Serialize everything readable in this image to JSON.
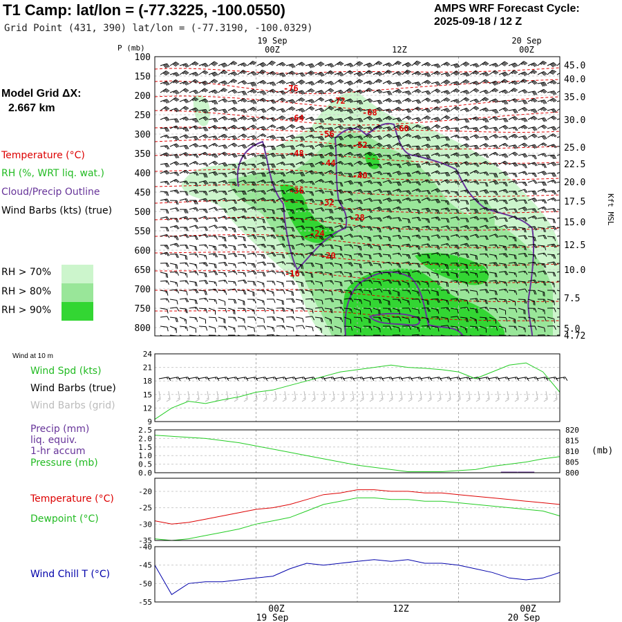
{
  "header": {
    "title": "T1 Camp:  lat/lon = (-77.3225, -100.0550)",
    "subtitle": "Grid Point (431, 390) lat/lon = (-77.3190, -100.0329)",
    "cycle_line1": "AMPS WRF Forecast Cycle:",
    "cycle_line2": "2025-09-18 / 12  Z"
  },
  "side": {
    "grid_label": "Model Grid ΔX:",
    "grid_value": "2.667 km",
    "legend_temperature": "Temperature (°C)",
    "legend_rh": "RH (%, WRT liq. wat.)",
    "legend_cloud": "Cloud/Precip Outline",
    "legend_wind": "Wind Barbs (kts) (true)",
    "rh_classes": [
      {
        "label": "RH > 70%",
        "color": "#ccf5cc"
      },
      {
        "label": "RH > 80%",
        "color": "#99e699"
      },
      {
        "label": "RH > 90%",
        "color": "#33d633"
      }
    ]
  },
  "colors": {
    "temperature": "#dd0000",
    "rh": "#22bb22",
    "cloud": "#663399",
    "windchill": "#0000aa",
    "dewpoint": "#22cc22",
    "grid": "#aaaaaa",
    "barbs_grid": "#bbbbbb",
    "precip": "#663399"
  },
  "chart_data": [
    {
      "type": "area",
      "panel": "cross-section",
      "ylabel_left": "P (mb)",
      "ylabel_right": "Kft MSL",
      "time_ticks": [
        {
          "label": "00Z",
          "date": "19 Sep"
        },
        {
          "label": "12Z",
          "date": ""
        },
        {
          "label": "00Z",
          "date": "20 Sep"
        }
      ],
      "pressure_ticks": [
        100,
        150,
        200,
        250,
        300,
        350,
        400,
        450,
        500,
        550,
        600,
        650,
        700,
        750,
        800
      ],
      "height_ticks": [
        "45.0",
        "40.0",
        "35.0",
        "30.0",
        "25.0",
        "22.5",
        "20.0",
        "17.5",
        "15.0",
        "12.5",
        "10.0",
        "7.5",
        "5.0",
        "4.72"
      ],
      "temperature_labels": [
        "-76",
        "-72",
        "-68",
        "-64",
        "-60",
        "-56",
        "-52",
        "-48",
        "-44",
        "-40",
        "-36",
        "-32",
        "-28",
        "-24",
        "-20",
        "-16"
      ]
    },
    {
      "type": "line",
      "panel": "wind-10m",
      "title": "Wind at 10 m",
      "legend": [
        "Wind Spd (kts)",
        "Wind Barbs (true)",
        "Wind Barbs (grid)"
      ],
      "yticks": [
        "24",
        "21",
        "18",
        "15",
        "12",
        "9"
      ],
      "ylim": [
        9,
        24
      ],
      "x": [
        -12,
        -10,
        -8,
        -6,
        -4,
        -2,
        0,
        2,
        4,
        6,
        8,
        10,
        12,
        14,
        16,
        18,
        20,
        22,
        24,
        26,
        28,
        30,
        32,
        34,
        36
      ],
      "series": [
        {
          "name": "Wind Spd (kts)",
          "values": [
            9.5,
            12,
            13.5,
            13,
            13.8,
            14.5,
            15.5,
            16,
            17,
            18,
            19,
            20,
            20.5,
            21,
            21.5,
            21,
            20.8,
            20.5,
            20,
            18.5,
            20,
            21.5,
            22,
            20,
            15.5
          ]
        }
      ]
    },
    {
      "type": "line",
      "panel": "precip-pressure",
      "legend": [
        "Precip (mm)",
        "liq. equiv.",
        "1-hr accum",
        "Pressure (mb)"
      ],
      "yticks_left": [
        "2.5",
        "2.0",
        "1.5",
        "1.0",
        "0.5",
        "0.0"
      ],
      "yticks_right": [
        "820",
        "815",
        "810",
        "805",
        "800"
      ],
      "unit_right": "(mb)",
      "ylim": [
        0,
        2.5
      ],
      "ylim_right": [
        800,
        820
      ],
      "x": [
        -12,
        -10,
        -8,
        -6,
        -4,
        -2,
        0,
        2,
        4,
        6,
        8,
        10,
        12,
        14,
        16,
        18,
        20,
        22,
        24,
        26,
        28,
        30,
        32,
        34,
        36
      ],
      "series": [
        {
          "name": "Pressure (mb)",
          "values": [
            817.5,
            817,
            816.5,
            816,
            815,
            814,
            812.5,
            811,
            809.5,
            808,
            806.5,
            805,
            803.5,
            802.5,
            801.5,
            800.5,
            800.5,
            800.5,
            801,
            801.5,
            803,
            804,
            805,
            806.5,
            807.5
          ]
        },
        {
          "name": "Precip (mm)",
          "values": [
            0,
            0,
            0,
            0,
            0,
            0,
            0,
            0,
            0,
            0,
            0,
            0,
            0,
            0.02,
            0.02,
            0,
            0,
            0,
            0,
            0,
            0,
            0.06,
            0.06,
            0,
            0
          ]
        }
      ]
    },
    {
      "type": "line",
      "panel": "temperature-dewpoint",
      "legend": [
        "Temperature (°C)",
        "Dewpoint (°C)"
      ],
      "yticks": [
        "-20",
        "-25",
        "-30",
        "-35"
      ],
      "ylim": [
        -35,
        -16
      ],
      "x": [
        -12,
        -10,
        -8,
        -6,
        -4,
        -2,
        0,
        2,
        4,
        6,
        8,
        10,
        12,
        14,
        16,
        18,
        20,
        22,
        24,
        26,
        28,
        30,
        32,
        34,
        36
      ],
      "series": [
        {
          "name": "Temperature (°C)",
          "values": [
            -29,
            -30,
            -29.5,
            -28.5,
            -27.5,
            -26.5,
            -25.5,
            -25,
            -24,
            -22.5,
            -21,
            -20.5,
            -19.5,
            -19.5,
            -20,
            -20,
            -20.5,
            -20.5,
            -21,
            -21.5,
            -22,
            -22.5,
            -23,
            -23.5,
            -24
          ]
        },
        {
          "name": "Dewpoint (°C)",
          "values": [
            -34.5,
            -35,
            -34.5,
            -33.5,
            -32.5,
            -31.5,
            -30,
            -29,
            -28,
            -26,
            -24,
            -23,
            -22,
            -22,
            -22.5,
            -22.5,
            -23,
            -23,
            -23.5,
            -24,
            -24.5,
            -25,
            -25.5,
            -26,
            -27.5
          ]
        }
      ]
    },
    {
      "type": "line",
      "panel": "wind-chill",
      "legend": [
        "Wind Chill T (°C)"
      ],
      "yticks": [
        "-40",
        "-45",
        "-50",
        "-55"
      ],
      "ylim": [
        -55,
        -40
      ],
      "x": [
        -12,
        -10,
        -8,
        -6,
        -4,
        -2,
        0,
        2,
        4,
        6,
        8,
        10,
        12,
        14,
        16,
        18,
        20,
        22,
        24,
        26,
        28,
        30,
        32,
        34,
        36
      ],
      "series": [
        {
          "name": "Wind Chill T (°C)",
          "values": [
            -45,
            -53,
            -50,
            -49.5,
            -49.5,
            -49,
            -48.5,
            -48,
            -46,
            -44.5,
            -45,
            -44.5,
            -44,
            -43.5,
            -44,
            -43.5,
            -44.5,
            -44.5,
            -45,
            -46,
            -47,
            -48.5,
            -49,
            -48.5,
            -47
          ]
        }
      ]
    }
  ]
}
